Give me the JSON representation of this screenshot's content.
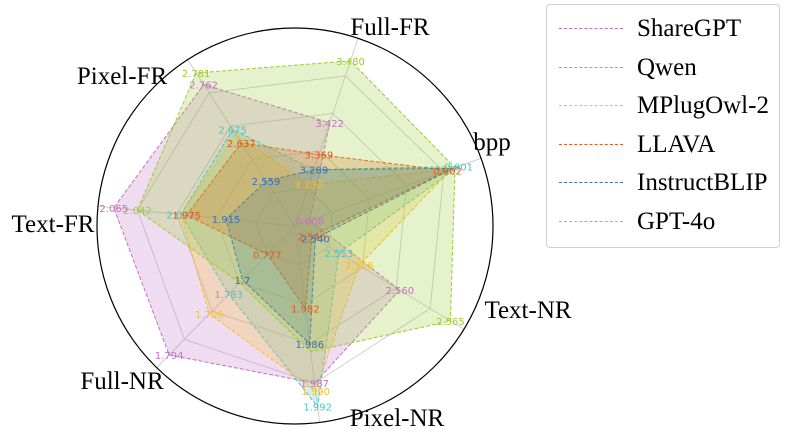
{
  "chart_data": {
    "type": "radar",
    "axes": [
      "bpp",
      "Full-FR",
      "Pixel-FR",
      "Text-FR",
      "Full-NR",
      "Pixel-NR",
      "Text-NR"
    ],
    "legend_position": "top-right",
    "grid": true,
    "series": [
      {
        "name": "ShareGPT",
        "color": "#c472c4",
        "values": [
          0.008,
          2.56,
          1.987,
          1.794,
          2.065,
          2.762,
          3.422
        ],
        "labels": [
          "0.008",
          "2.560",
          "1.987",
          "1.794",
          "2.065",
          "2.762",
          "3.422"
        ],
        "radii": [
          0.08,
          0.62,
          0.8,
          0.91,
          0.92,
          0.85,
          0.55
        ]
      },
      {
        "name": "Qwen",
        "color": "#4fc3c9",
        "values": [
          0.001,
          2.553,
          1.992,
          1.783,
          2.003,
          2.675,
          3.289
        ],
        "labels": [
          "0.001",
          "2.553",
          "1.992",
          "1.783",
          "2.003",
          "2.675",
          "3.289"
        ],
        "radii": [
          0.88,
          0.26,
          0.92,
          0.48,
          0.58,
          0.58,
          0.3
        ]
      },
      {
        "name": "MPlugOwl-2",
        "color": "#f2c12e",
        "values": [
          0.001,
          2.556,
          1.99,
          1.709,
          2.003,
          2.675,
          3.23
        ],
        "labels": [
          "",
          "2.556",
          "1.990",
          "1.709",
          "",
          "",
          "3.230"
        ],
        "radii": [
          0.84,
          0.38,
          0.84,
          0.62,
          0.58,
          0.55,
          0.22
        ]
      },
      {
        "name": "LLAVA",
        "color": "#e8581c",
        "values": [
          0.002,
          2.546,
          1.982,
          0.777,
          1.975,
          2.637,
          3.369
        ],
        "labels": [
          "0.002",
          "2.546",
          "1.982",
          "0.777",
          "1.975",
          "2.637",
          "3.369"
        ],
        "radii": [
          0.82,
          0.1,
          0.42,
          0.2,
          0.55,
          0.5,
          0.38
        ]
      },
      {
        "name": "InstructBLIP",
        "color": "#3d6fb0",
        "values": [
          0.001,
          2.54,
          1.986,
          1.7,
          1.915,
          2.559,
          3.289
        ],
        "labels": [
          "",
          "2.540",
          "1.986",
          "1.7",
          "1.915",
          "2.559",
          "3.289"
        ],
        "radii": [
          0.85,
          0.12,
          0.6,
          0.38,
          0.35,
          0.27,
          0.3
        ]
      },
      {
        "name": "GPT-4o",
        "color": "#9acd32",
        "values": [
          0.001,
          2.565,
          1.98,
          1.7,
          2.042,
          2.781,
          3.48
        ],
        "labels": [
          "",
          "2.565",
          "",
          "",
          "2.042",
          "2.781",
          "3.480"
        ],
        "radii": [
          0.86,
          0.92,
          0.64,
          0.4,
          0.8,
          0.92,
          0.88
        ]
      }
    ]
  }
}
